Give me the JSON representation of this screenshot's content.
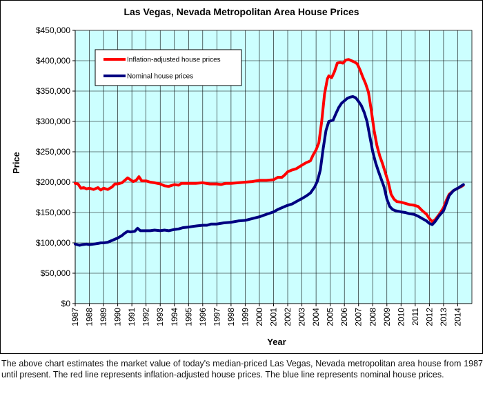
{
  "chart_data": {
    "type": "line",
    "title": "Las Vegas, Nevada Metropolitan Area House Prices",
    "xlabel": "Year",
    "ylabel": "Price",
    "ylim": [
      0,
      450000
    ],
    "xlim": [
      1987,
      2015
    ],
    "y_ticks": [
      "$0",
      "$50,000",
      "$100,000",
      "$150,000",
      "$200,000",
      "$250,000",
      "$300,000",
      "$350,000",
      "$400,000",
      "$450,000"
    ],
    "y_tick_values": [
      0,
      50000,
      100000,
      150000,
      200000,
      250000,
      300000,
      350000,
      400000,
      450000
    ],
    "x_ticks": [
      "1987",
      "1988",
      "1989",
      "1990",
      "1991",
      "1992",
      "1993",
      "1994",
      "1995",
      "1996",
      "1997",
      "1998",
      "1999",
      "2000",
      "2001",
      "2002",
      "2003",
      "2004",
      "2005",
      "2006",
      "2007",
      "2008",
      "2009",
      "2010",
      "2011",
      "2012",
      "2013",
      "2014"
    ],
    "grid": true,
    "plot_background": "#ccffff",
    "legend_position": "top-left",
    "series": [
      {
        "name": "Inflation-adjusted house prices",
        "color": "#ff0000",
        "points": [
          [
            1987.0,
            198000
          ],
          [
            1987.2,
            197000
          ],
          [
            1987.4,
            190000
          ],
          [
            1987.6,
            191000
          ],
          [
            1987.8,
            189000
          ],
          [
            1988.0,
            190000
          ],
          [
            1988.3,
            188000
          ],
          [
            1988.6,
            191000
          ],
          [
            1988.8,
            187000
          ],
          [
            1989.0,
            190000
          ],
          [
            1989.3,
            188000
          ],
          [
            1989.6,
            192000
          ],
          [
            1989.8,
            197000
          ],
          [
            1990.0,
            197000
          ],
          [
            1990.3,
            199000
          ],
          [
            1990.5,
            203000
          ],
          [
            1990.7,
            207000
          ],
          [
            1990.9,
            204000
          ],
          [
            1991.1,
            201000
          ],
          [
            1991.3,
            203000
          ],
          [
            1991.5,
            209000
          ],
          [
            1991.7,
            202000
          ],
          [
            1992.0,
            202000
          ],
          [
            1992.3,
            200000
          ],
          [
            1992.6,
            199000
          ],
          [
            1993.0,
            197000
          ],
          [
            1993.3,
            194000
          ],
          [
            1993.6,
            193000
          ],
          [
            1994.0,
            196000
          ],
          [
            1994.3,
            195000
          ],
          [
            1994.5,
            198000
          ],
          [
            1995.0,
            198000
          ],
          [
            1995.5,
            198000
          ],
          [
            1996.0,
            199000
          ],
          [
            1996.5,
            197000
          ],
          [
            1997.0,
            197000
          ],
          [
            1997.3,
            196000
          ],
          [
            1997.6,
            198000
          ],
          [
            1998.0,
            198000
          ],
          [
            1998.5,
            199000
          ],
          [
            1999.0,
            200000
          ],
          [
            1999.5,
            201000
          ],
          [
            2000.0,
            203000
          ],
          [
            2000.5,
            203000
          ],
          [
            2001.0,
            204000
          ],
          [
            2001.3,
            208000
          ],
          [
            2001.6,
            208000
          ],
          [
            2001.8,
            212000
          ],
          [
            2002.0,
            217000
          ],
          [
            2002.3,
            220000
          ],
          [
            2002.6,
            222000
          ],
          [
            2003.0,
            228000
          ],
          [
            2003.3,
            232000
          ],
          [
            2003.6,
            235000
          ],
          [
            2003.8,
            245000
          ],
          [
            2004.0,
            253000
          ],
          [
            2004.2,
            265000
          ],
          [
            2004.4,
            300000
          ],
          [
            2004.6,
            345000
          ],
          [
            2004.8,
            370000
          ],
          [
            2004.9,
            375000
          ],
          [
            2005.1,
            372000
          ],
          [
            2005.3,
            382000
          ],
          [
            2005.5,
            396000
          ],
          [
            2005.7,
            397000
          ],
          [
            2005.9,
            396000
          ],
          [
            2006.1,
            401000
          ],
          [
            2006.3,
            402000
          ],
          [
            2006.5,
            400000
          ],
          [
            2006.7,
            398000
          ],
          [
            2006.9,
            395000
          ],
          [
            2007.1,
            385000
          ],
          [
            2007.3,
            373000
          ],
          [
            2007.5,
            362000
          ],
          [
            2007.7,
            348000
          ],
          [
            2007.9,
            318000
          ],
          [
            2008.1,
            285000
          ],
          [
            2008.3,
            260000
          ],
          [
            2008.5,
            243000
          ],
          [
            2008.7,
            230000
          ],
          [
            2008.9,
            215000
          ],
          [
            2009.1,
            200000
          ],
          [
            2009.3,
            180000
          ],
          [
            2009.5,
            172000
          ],
          [
            2009.7,
            168000
          ],
          [
            2010.0,
            167000
          ],
          [
            2010.3,
            165000
          ],
          [
            2010.6,
            163000
          ],
          [
            2010.9,
            162000
          ],
          [
            2011.2,
            160000
          ],
          [
            2011.5,
            153000
          ],
          [
            2011.8,
            147000
          ],
          [
            2012.0,
            140000
          ],
          [
            2012.2,
            135000
          ],
          [
            2012.4,
            138000
          ],
          [
            2012.7,
            147000
          ],
          [
            2013.0,
            158000
          ],
          [
            2013.2,
            170000
          ],
          [
            2013.4,
            180000
          ],
          [
            2013.7,
            186000
          ],
          [
            2014.0,
            190000
          ],
          [
            2014.2,
            192000
          ],
          [
            2014.4,
            195000
          ]
        ]
      },
      {
        "name": "Nominal house prices",
        "color": "#000080",
        "points": [
          [
            1987.0,
            98000
          ],
          [
            1987.3,
            96000
          ],
          [
            1987.5,
            97000
          ],
          [
            1987.8,
            98000
          ],
          [
            1988.0,
            97000
          ],
          [
            1988.3,
            98000
          ],
          [
            1988.6,
            99000
          ],
          [
            1988.8,
            100000
          ],
          [
            1989.0,
            100000
          ],
          [
            1989.3,
            101000
          ],
          [
            1989.6,
            104000
          ],
          [
            1990.0,
            108000
          ],
          [
            1990.3,
            112000
          ],
          [
            1990.5,
            116000
          ],
          [
            1990.7,
            119000
          ],
          [
            1990.9,
            118000
          ],
          [
            1991.2,
            119000
          ],
          [
            1991.4,
            124000
          ],
          [
            1991.6,
            120000
          ],
          [
            1992.0,
            120000
          ],
          [
            1992.3,
            120000
          ],
          [
            1992.6,
            121000
          ],
          [
            1993.0,
            120000
          ],
          [
            1993.3,
            121000
          ],
          [
            1993.6,
            120000
          ],
          [
            1994.0,
            122000
          ],
          [
            1994.3,
            123000
          ],
          [
            1994.6,
            125000
          ],
          [
            1995.0,
            126000
          ],
          [
            1995.3,
            127000
          ],
          [
            1995.6,
            128000
          ],
          [
            1996.0,
            129000
          ],
          [
            1996.3,
            129000
          ],
          [
            1996.6,
            131000
          ],
          [
            1997.0,
            131000
          ],
          [
            1997.5,
            133000
          ],
          [
            1998.0,
            134000
          ],
          [
            1998.5,
            136000
          ],
          [
            1999.0,
            137000
          ],
          [
            1999.5,
            140000
          ],
          [
            2000.0,
            143000
          ],
          [
            2000.5,
            147000
          ],
          [
            2001.0,
            151000
          ],
          [
            2001.3,
            155000
          ],
          [
            2001.6,
            158000
          ],
          [
            2001.9,
            161000
          ],
          [
            2002.3,
            164000
          ],
          [
            2002.6,
            168000
          ],
          [
            2003.0,
            173000
          ],
          [
            2003.3,
            177000
          ],
          [
            2003.6,
            182000
          ],
          [
            2003.9,
            192000
          ],
          [
            2004.1,
            202000
          ],
          [
            2004.3,
            220000
          ],
          [
            2004.5,
            255000
          ],
          [
            2004.7,
            285000
          ],
          [
            2004.9,
            300000
          ],
          [
            2005.2,
            302000
          ],
          [
            2005.4,
            313000
          ],
          [
            2005.6,
            323000
          ],
          [
            2005.8,
            330000
          ],
          [
            2006.0,
            334000
          ],
          [
            2006.2,
            338000
          ],
          [
            2006.4,
            340000
          ],
          [
            2006.6,
            341000
          ],
          [
            2006.8,
            339000
          ],
          [
            2007.0,
            333000
          ],
          [
            2007.2,
            326000
          ],
          [
            2007.4,
            315000
          ],
          [
            2007.6,
            300000
          ],
          [
            2007.8,
            275000
          ],
          [
            2008.0,
            250000
          ],
          [
            2008.2,
            232000
          ],
          [
            2008.4,
            218000
          ],
          [
            2008.6,
            205000
          ],
          [
            2008.8,
            192000
          ],
          [
            2009.0,
            172000
          ],
          [
            2009.2,
            160000
          ],
          [
            2009.4,
            155000
          ],
          [
            2009.6,
            153000
          ],
          [
            2009.8,
            152000
          ],
          [
            2010.0,
            151000
          ],
          [
            2010.3,
            150000
          ],
          [
            2010.6,
            148000
          ],
          [
            2010.9,
            147000
          ],
          [
            2011.2,
            144000
          ],
          [
            2011.5,
            140000
          ],
          [
            2011.8,
            136000
          ],
          [
            2012.0,
            132000
          ],
          [
            2012.2,
            130000
          ],
          [
            2012.4,
            135000
          ],
          [
            2012.7,
            145000
          ],
          [
            2013.0,
            153000
          ],
          [
            2013.2,
            165000
          ],
          [
            2013.4,
            178000
          ],
          [
            2013.7,
            186000
          ],
          [
            2014.0,
            190000
          ],
          [
            2014.2,
            193000
          ],
          [
            2014.4,
            196000
          ]
        ]
      }
    ]
  },
  "caption": "The above chart estimates the market value of today's median-priced Las Vegas, Nevada metropolitan area house from 1987 until present. The red line represents inflation-adjusted house prices. The blue line represents nominal house prices."
}
